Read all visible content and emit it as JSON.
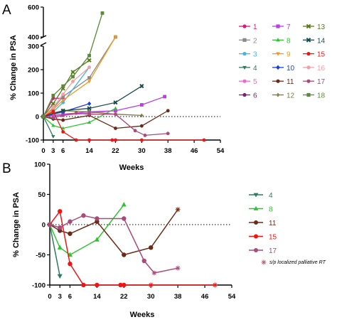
{
  "chart_data": [
    {
      "panel_label": "A",
      "type": "line",
      "xlabel": "Weeks",
      "ylabel": "% Change in PSA",
      "x_ticks": [
        0,
        3,
        6,
        14,
        22,
        30,
        38,
        46,
        54
      ],
      "y_ticks_lower": [
        -100,
        0,
        100,
        200,
        300
      ],
      "y_ticks_upper": [
        400,
        600
      ],
      "y_axis_break": [
        300,
        320
      ],
      "xlim": [
        0,
        54
      ],
      "reference_line": 0,
      "legend_position": "right",
      "series": [
        {
          "name": "1",
          "color": "#d6197a",
          "marker": "dot",
          "x": [
            0,
            3,
            6
          ],
          "y": [
            0,
            78,
            78
          ]
        },
        {
          "name": "2",
          "color": "#8a8a8a",
          "marker": "square",
          "x": [
            0,
            3,
            6,
            14,
            22
          ],
          "y": [
            0,
            35,
            85,
            165,
            330
          ]
        },
        {
          "name": "3",
          "color": "#45b1e6",
          "marker": "dot",
          "x": [
            0,
            3,
            6,
            14
          ],
          "y": [
            0,
            20,
            60,
            210
          ]
        },
        {
          "name": "4",
          "color": "#2e7a5e",
          "marker": "triangle-down",
          "x": [
            0,
            3
          ],
          "y": [
            0,
            -85
          ]
        },
        {
          "name": "5",
          "color": "#e86ad1",
          "marker": "dot",
          "x": [
            0,
            6,
            14,
            22
          ],
          "y": [
            0,
            5,
            15,
            25
          ]
        },
        {
          "name": "6",
          "color": "#7a1e7a",
          "marker": "dot",
          "x": [
            0,
            3,
            6
          ],
          "y": [
            0,
            -10,
            -15
          ]
        },
        {
          "name": "7",
          "color": "#b83ee6",
          "marker": "square",
          "x": [
            0,
            6,
            14,
            22,
            30,
            37
          ],
          "y": [
            0,
            10,
            20,
            25,
            50,
            85
          ]
        },
        {
          "name": "8",
          "color": "#2fc42f",
          "marker": "triangle",
          "x": [
            0,
            3,
            6,
            14,
            22
          ],
          "y": [
            0,
            -38,
            -50,
            -25,
            35
          ]
        },
        {
          "name": "9",
          "color": "#f39a1f",
          "marker": "triangle-down",
          "x": [
            0,
            3,
            6,
            14,
            22
          ],
          "y": [
            0,
            30,
            70,
            150,
            340
          ]
        },
        {
          "name": "10",
          "color": "#1a3fd6",
          "marker": "diamond",
          "x": [
            0,
            6,
            14
          ],
          "y": [
            0,
            20,
            55
          ]
        },
        {
          "name": "11",
          "color": "#6b2a15",
          "marker": "dot",
          "x": [
            0,
            3,
            6,
            14,
            22,
            30,
            38
          ],
          "y": [
            0,
            -10,
            -15,
            5,
            -50,
            -40,
            25
          ]
        },
        {
          "name": "12",
          "color": "#7a7a3a",
          "marker": "plus",
          "x": [
            0,
            3,
            6,
            14,
            22,
            30
          ],
          "y": [
            0,
            15,
            25,
            20,
            10,
            5
          ]
        },
        {
          "name": "13",
          "color": "#5a7a1a",
          "marker": "cross",
          "x": [
            0,
            3,
            6,
            9,
            14
          ],
          "y": [
            0,
            55,
            120,
            190,
            240
          ]
        },
        {
          "name": "14",
          "color": "#1a4a4a",
          "marker": "cross",
          "x": [
            0,
            6,
            14,
            22,
            30
          ],
          "y": [
            0,
            25,
            35,
            60,
            130
          ]
        },
        {
          "name": "15",
          "color": "#f01515",
          "marker": "dot",
          "x": [
            0,
            3,
            6,
            10,
            14,
            21,
            22,
            30,
            49
          ],
          "y": [
            0,
            22,
            -65,
            -100,
            -100,
            -100,
            -100,
            -100,
            -100
          ]
        },
        {
          "name": "16",
          "color": "#f0a0a8",
          "marker": "dot",
          "x": [
            0,
            3,
            6,
            9,
            14
          ],
          "y": [
            0,
            40,
            95,
            150,
            210
          ]
        },
        {
          "name": "17",
          "color": "#a84a7a",
          "marker": "dot",
          "x": [
            0,
            3,
            6,
            10,
            14,
            22,
            28,
            31,
            38
          ],
          "y": [
            0,
            -5,
            5,
            15,
            10,
            10,
            -60,
            -80,
            -72
          ]
        },
        {
          "name": "18",
          "color": "#5a8a3a",
          "marker": "square",
          "x": [
            0,
            3,
            6,
            9,
            14,
            18
          ],
          "y": [
            0,
            90,
            130,
            170,
            260,
            560
          ]
        }
      ]
    },
    {
      "panel_label": "B",
      "type": "line",
      "xlabel": "Weeks",
      "ylabel": "% Change in PSA",
      "x_ticks": [
        0,
        3,
        6,
        14,
        22,
        30,
        38,
        46,
        54
      ],
      "y_ticks": [
        -100,
        -50,
        0,
        50,
        100
      ],
      "xlim": [
        0,
        54
      ],
      "ylim": [
        -100,
        100
      ],
      "reference_line": 0,
      "legend_position": "right",
      "annotation": "s/p localized palliative RT",
      "series": [
        {
          "name": "4",
          "color": "#2e7a5e",
          "marker": "triangle-down",
          "x": [
            0,
            3
          ],
          "y": [
            0,
            -85
          ]
        },
        {
          "name": "8",
          "color": "#2fc42f",
          "marker": "triangle",
          "x": [
            0,
            3,
            6,
            14,
            22
          ],
          "y": [
            0,
            -38,
            -50,
            -25,
            33
          ]
        },
        {
          "name": "11",
          "color": "#6b2a15",
          "marker": "dot",
          "x": [
            0,
            3,
            6,
            14,
            22,
            30,
            38
          ],
          "y": [
            0,
            -10,
            -15,
            5,
            -50,
            -38,
            25
          ]
        },
        {
          "name": "15",
          "color": "#f01515",
          "marker": "dot",
          "x": [
            0,
            3,
            6,
            10,
            14,
            21,
            22,
            30,
            49
          ],
          "y": [
            0,
            22,
            -65,
            -100,
            -100,
            -100,
            -100,
            -100,
            -100
          ]
        },
        {
          "name": "17",
          "color": "#a84a7a",
          "marker": "dot",
          "x": [
            0,
            3,
            6,
            10,
            14,
            22,
            28,
            31,
            38
          ],
          "y": [
            0,
            -5,
            5,
            15,
            10,
            10,
            -60,
            -80,
            -72
          ]
        }
      ],
      "rt_points": [
        {
          "x": 38,
          "y": 25
        },
        {
          "x": 31,
          "y": -80
        },
        {
          "x": 38,
          "y": -72
        },
        {
          "x": 30,
          "y": -100
        },
        {
          "x": 38,
          "y": -100
        },
        {
          "x": 49,
          "y": -100
        }
      ]
    }
  ]
}
